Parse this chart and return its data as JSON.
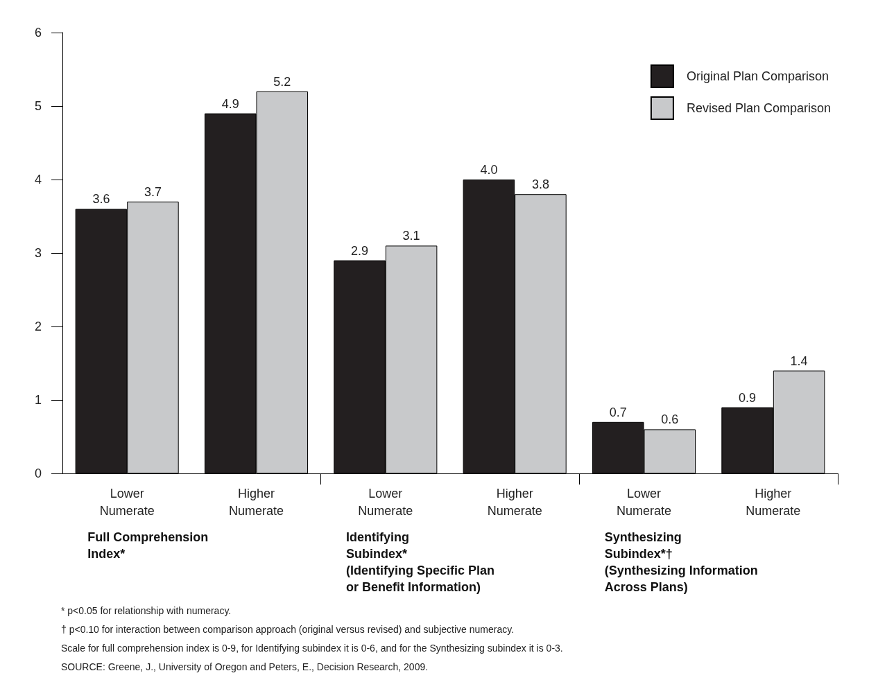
{
  "chart_data": {
    "type": "bar",
    "categories": [
      "Lower\nNumerate",
      "Higher\nNumerate",
      "Lower\nNumerate",
      "Higher\nNumerate",
      "Lower\nNumerate",
      "Higher\nNumerate"
    ],
    "series": [
      {
        "name": "Original Plan Comparison",
        "color": "#231f20",
        "values": [
          3.6,
          4.9,
          2.9,
          4.0,
          0.7,
          0.9
        ]
      },
      {
        "name": "Revised Plan Comparison",
        "color": "#c8c9cb",
        "values": [
          3.7,
          5.2,
          3.1,
          3.8,
          0.6,
          1.4
        ]
      }
    ],
    "value_labels": [
      [
        "3.6",
        "4.9",
        "2.9",
        "4.0",
        "0.7",
        "0.9"
      ],
      [
        "3.7",
        "5.2",
        "3.1",
        "3.8",
        "0.6",
        "1.4"
      ]
    ],
    "ylim": [
      0,
      6
    ],
    "yticks": [
      0,
      1,
      2,
      3,
      4,
      5,
      6
    ],
    "grid": false,
    "legend": "top right",
    "annotations": [
      "Full Comprehension\nIndex*",
      "Identifying\nSubindex*\n(Identifying Specific Plan\nor Benefit Information)",
      "Synthesizing\nSubindex*†\n(Synthesizing Information\nAcross Plans)",
      "* p<0.05 for relationship with numeracy.",
      "† p<0.10 for interaction between comparison approach (original versus revised) and subjective numeracy.",
      "Scale for full comprehension index is 0-9, for Identifying subindex it is 0-6, and for the Synthesizing subindex it is 0-3.",
      "SOURCE: Greene, J., University of Oregon and Peters, E., Decision Research, 2009."
    ]
  }
}
